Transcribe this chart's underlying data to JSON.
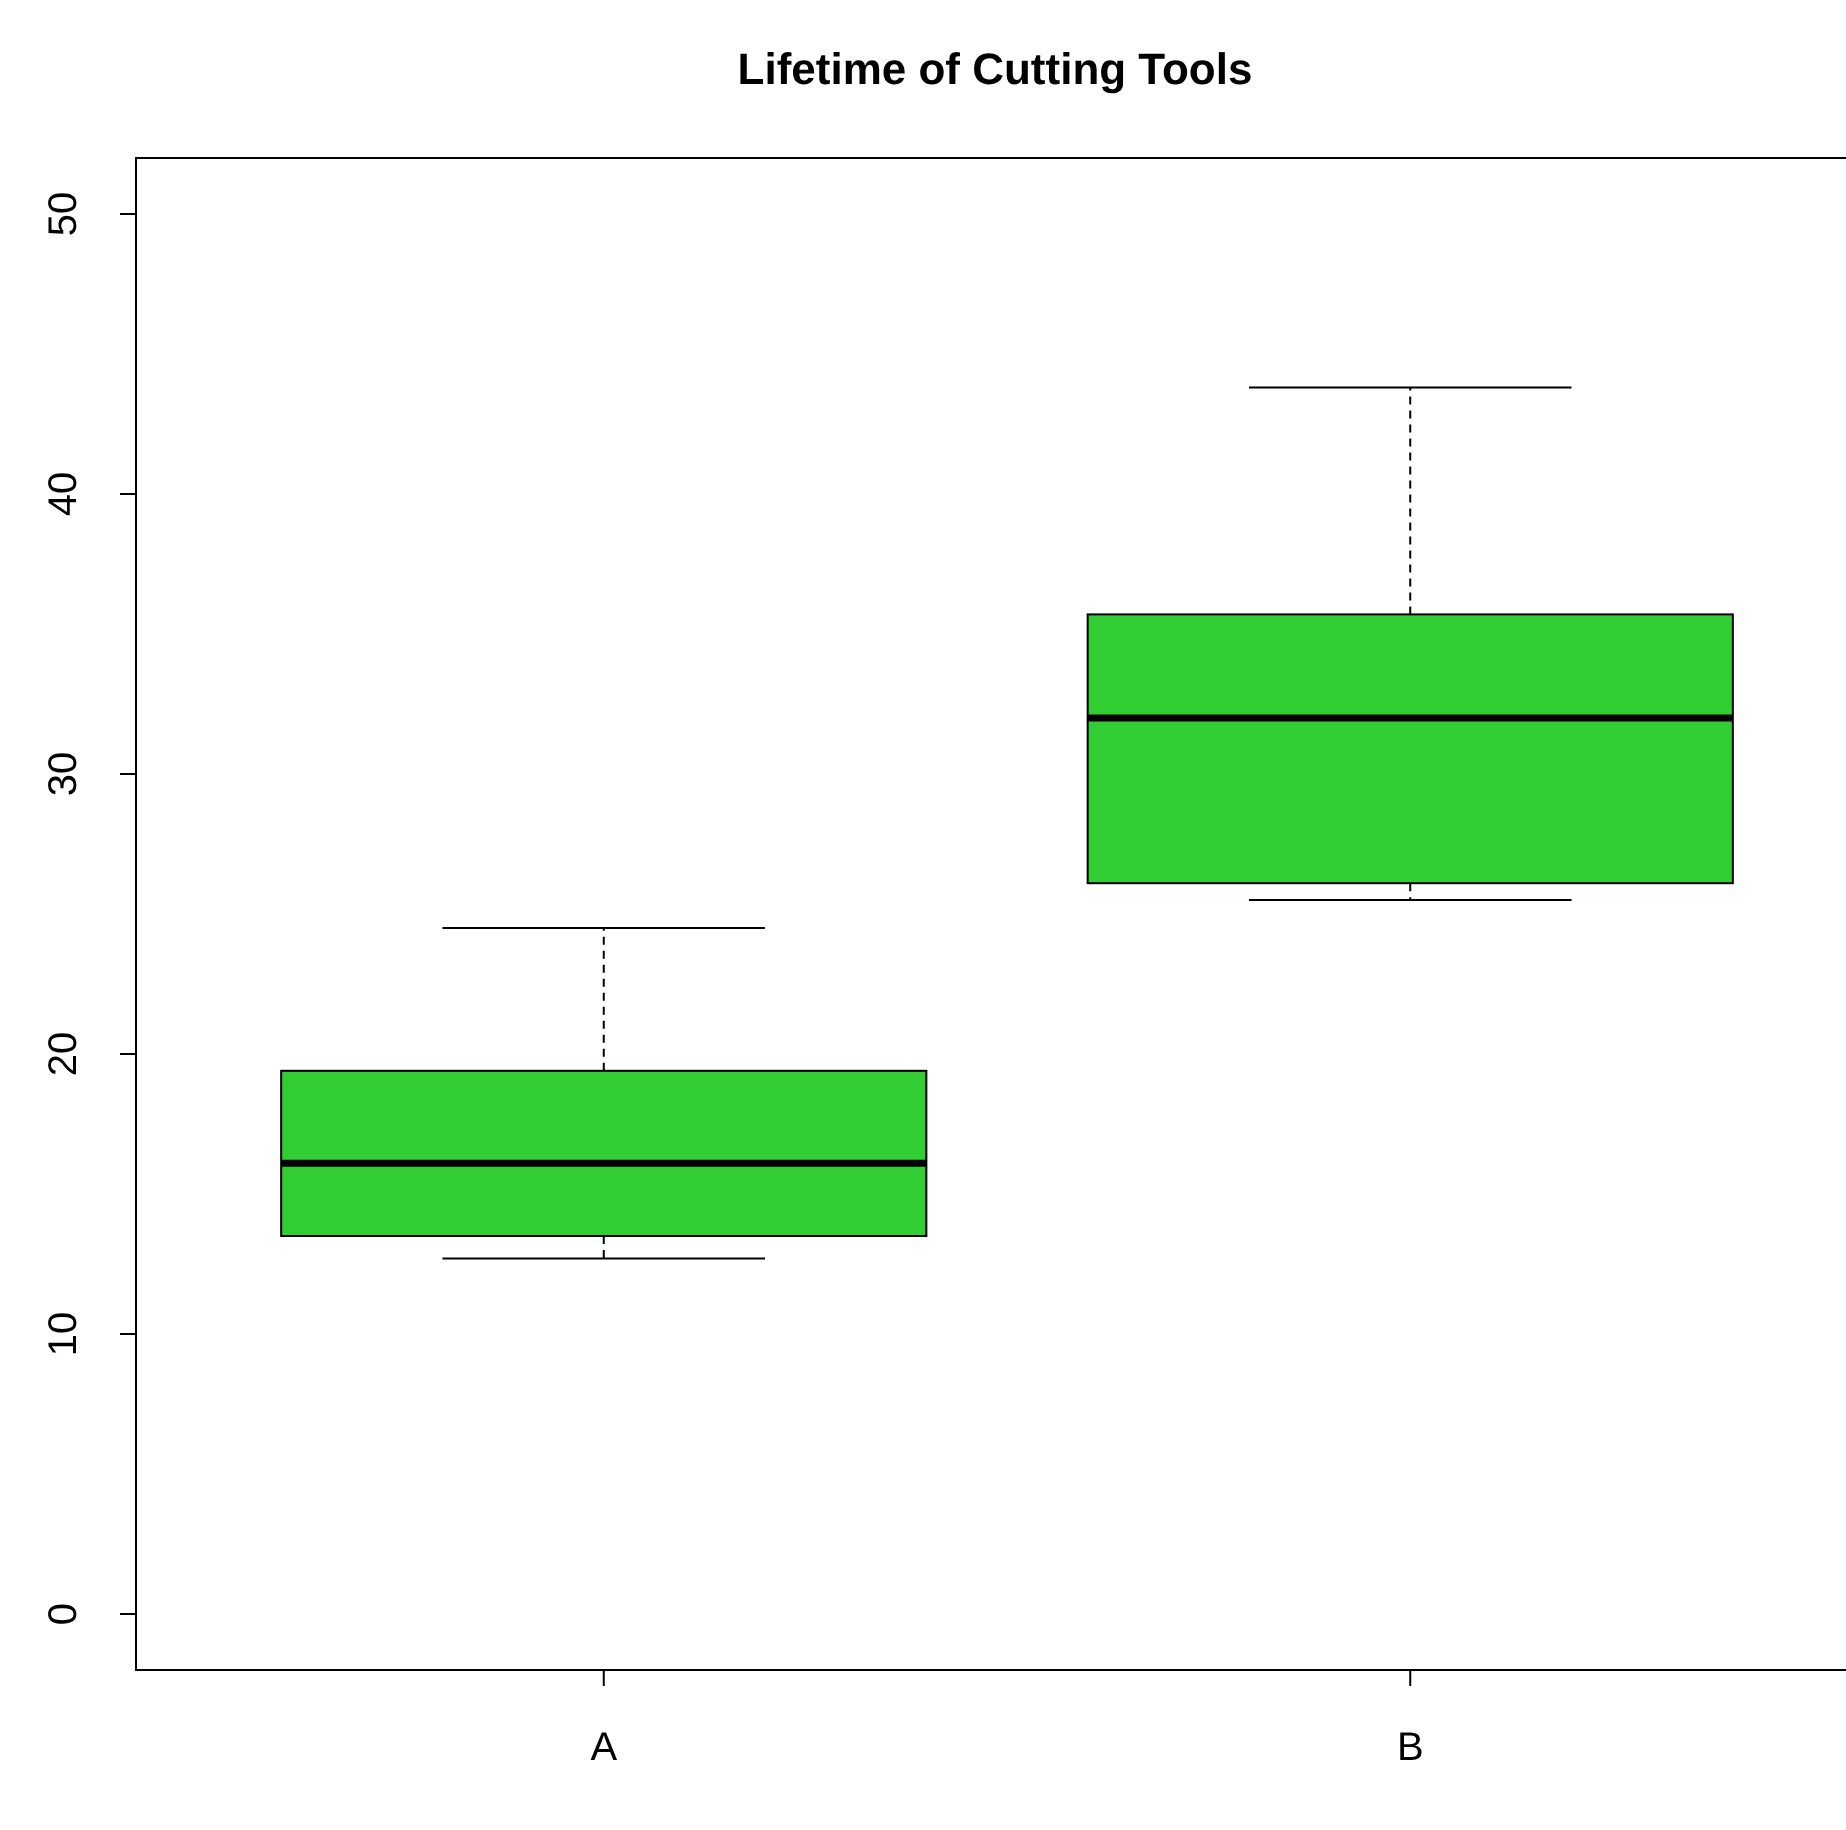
{
  "chart_data": {
    "type": "box",
    "title": "Lifetime of Cutting Tools",
    "categories": [
      "A",
      "B"
    ],
    "ylim": [
      -2,
      52
    ],
    "yticks": [
      0,
      10,
      20,
      30,
      40,
      50
    ],
    "series": [
      {
        "color": "#32cd32",
        "boxes": [
          {
            "low": 12.7,
            "q1": 13.5,
            "median": 16.1,
            "q3": 19.4,
            "high": 24.5
          },
          {
            "low": 25.5,
            "q1": 26.1,
            "median": 32.0,
            "q3": 35.7,
            "high": 43.8
          }
        ]
      }
    ]
  }
}
